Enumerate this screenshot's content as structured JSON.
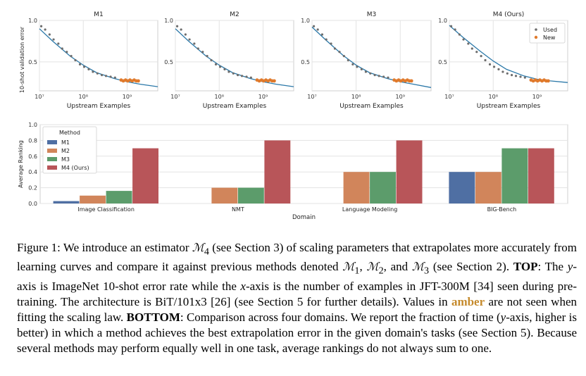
{
  "colors": {
    "curve": "#2b78a8",
    "used": "#6d6d6d",
    "new": "#e07a2c",
    "grid": "#e3e3e3",
    "axis": "#cfcfcf",
    "bars": [
      "#4f6fa3",
      "#d1855b",
      "#5c9c6b",
      "#b85559"
    ]
  },
  "chart_data": [
    {
      "type": "scatter",
      "title": "M1",
      "xlabel": "Upstream Examples",
      "ylabel": "10-shot validation error",
      "xscale": "log",
      "xlim": [
        10000000,
        5000000000
      ],
      "ylim": [
        0.15,
        1.0
      ],
      "yticks": [
        "0.5",
        "1.0"
      ],
      "xticks": [
        "10⁷",
        "10⁸",
        "10⁹"
      ],
      "grid": true,
      "used_points": {
        "x": [
          11000000,
          13500000,
          17000000,
          21000000,
          27000000,
          33000000,
          42000000,
          53000000,
          66000000,
          84000000,
          105000000,
          133000000,
          166000000,
          210000000,
          265000000,
          330000000,
          420000000,
          530000000
        ],
        "y": [
          0.93,
          0.89,
          0.83,
          0.77,
          0.72,
          0.66,
          0.62,
          0.57,
          0.52,
          0.47,
          0.44,
          0.41,
          0.38,
          0.36,
          0.34,
          0.33,
          0.32,
          0.31
        ]
      },
      "new_points": {
        "x": [
          730000000,
          820000000,
          920000000,
          1030000000,
          1160000000,
          1300000000,
          1450000000,
          1620000000,
          1800000000
        ],
        "y": [
          0.28,
          0.27,
          0.28,
          0.27,
          0.28,
          0.27,
          0.28,
          0.27,
          0.27
        ]
      },
      "fit_curve": {
        "x": [
          10000000,
          20000000,
          50000000,
          100000000,
          200000000,
          500000000,
          1000000000,
          2000000000,
          5000000000
        ],
        "y": [
          0.9,
          0.75,
          0.57,
          0.46,
          0.37,
          0.3,
          0.26,
          0.23,
          0.2
        ]
      }
    },
    {
      "type": "scatter",
      "title": "M2",
      "xlabel": "Upstream Examples",
      "xscale": "log",
      "xlim": [
        10000000,
        5000000000
      ],
      "ylim": [
        0.15,
        1.0
      ],
      "yticks": [
        "0.5",
        "1.0"
      ],
      "xticks": [
        "10⁷",
        "10⁸",
        "10⁹"
      ],
      "grid": true,
      "used_points": {
        "x": [
          11000000,
          13500000,
          17000000,
          21000000,
          27000000,
          33000000,
          42000000,
          53000000,
          66000000,
          84000000,
          105000000,
          133000000,
          166000000,
          210000000,
          265000000,
          330000000,
          420000000,
          530000000
        ],
        "y": [
          0.93,
          0.89,
          0.83,
          0.77,
          0.72,
          0.66,
          0.62,
          0.57,
          0.52,
          0.47,
          0.44,
          0.41,
          0.38,
          0.36,
          0.34,
          0.33,
          0.32,
          0.31
        ]
      },
      "new_points": {
        "x": [
          730000000,
          820000000,
          920000000,
          1030000000,
          1160000000,
          1300000000,
          1450000000,
          1620000000,
          1800000000
        ],
        "y": [
          0.28,
          0.27,
          0.28,
          0.27,
          0.28,
          0.27,
          0.28,
          0.27,
          0.27
        ]
      },
      "fit_curve": {
        "x": [
          10000000,
          20000000,
          50000000,
          100000000,
          200000000,
          500000000,
          1000000000,
          2000000000,
          5000000000
        ],
        "y": [
          0.9,
          0.75,
          0.57,
          0.46,
          0.37,
          0.3,
          0.26,
          0.23,
          0.2
        ]
      }
    },
    {
      "type": "scatter",
      "title": "M3",
      "xlabel": "Upstream Examples",
      "xscale": "log",
      "xlim": [
        10000000,
        5000000000
      ],
      "ylim": [
        0.15,
        1.0
      ],
      "yticks": [
        "0.5",
        "1.0"
      ],
      "xticks": [
        "10⁷",
        "10⁸",
        "10⁹"
      ],
      "grid": true,
      "used_points": {
        "x": [
          11000000,
          13500000,
          17000000,
          21000000,
          27000000,
          33000000,
          42000000,
          53000000,
          66000000,
          84000000,
          105000000,
          133000000,
          166000000,
          210000000,
          265000000,
          330000000,
          420000000,
          530000000
        ],
        "y": [
          0.93,
          0.89,
          0.83,
          0.77,
          0.72,
          0.66,
          0.62,
          0.57,
          0.52,
          0.47,
          0.44,
          0.41,
          0.38,
          0.36,
          0.34,
          0.33,
          0.32,
          0.31
        ]
      },
      "new_points": {
        "x": [
          730000000,
          820000000,
          920000000,
          1030000000,
          1160000000,
          1300000000,
          1450000000,
          1620000000,
          1800000000
        ],
        "y": [
          0.28,
          0.27,
          0.28,
          0.27,
          0.28,
          0.27,
          0.28,
          0.27,
          0.27
        ]
      },
      "fit_curve": {
        "x": [
          10000000,
          20000000,
          50000000,
          100000000,
          200000000,
          500000000,
          1000000000,
          2000000000,
          5000000000
        ],
        "y": [
          0.92,
          0.77,
          0.58,
          0.46,
          0.37,
          0.3,
          0.26,
          0.23,
          0.19
        ]
      }
    },
    {
      "type": "scatter",
      "title": "M4 (Ours)",
      "xlabel": "Upstream Examples",
      "xscale": "log",
      "xlim": [
        10000000,
        5000000000
      ],
      "ylim": [
        0.15,
        1.0
      ],
      "yticks": [
        "0.5",
        "1.0"
      ],
      "xticks": [
        "10⁷",
        "10⁸",
        "10⁹"
      ],
      "grid": true,
      "legend": {
        "position": "top-right",
        "entries": [
          "Used",
          "New"
        ]
      },
      "used_points": {
        "x": [
          11000000,
          13500000,
          17000000,
          21000000,
          27000000,
          33000000,
          42000000,
          53000000,
          66000000,
          84000000,
          105000000,
          133000000,
          166000000,
          210000000,
          265000000,
          330000000,
          420000000,
          530000000
        ],
        "y": [
          0.93,
          0.89,
          0.83,
          0.77,
          0.72,
          0.66,
          0.62,
          0.57,
          0.52,
          0.47,
          0.44,
          0.41,
          0.38,
          0.36,
          0.34,
          0.33,
          0.32,
          0.31
        ]
      },
      "new_points": {
        "x": [
          730000000,
          820000000,
          920000000,
          1030000000,
          1160000000,
          1300000000,
          1450000000,
          1620000000,
          1800000000
        ],
        "y": [
          0.28,
          0.27,
          0.28,
          0.27,
          0.28,
          0.27,
          0.28,
          0.27,
          0.27
        ]
      },
      "fit_curve": {
        "x": [
          10000000,
          20000000,
          50000000,
          100000000,
          200000000,
          500000000,
          1000000000,
          2000000000,
          5000000000
        ],
        "y": [
          0.94,
          0.8,
          0.63,
          0.51,
          0.41,
          0.33,
          0.29,
          0.27,
          0.25
        ]
      }
    },
    {
      "type": "bar",
      "categories": [
        "Image Classification",
        "NMT",
        "Language Modeling",
        "BIG-Bench"
      ],
      "xlabel": "Domain",
      "ylabel": "Average Ranking",
      "ylim": [
        0,
        1.0
      ],
      "yticks": [
        "0.0",
        "0.2",
        "0.4",
        "0.6",
        "0.8",
        "1.0"
      ],
      "grid": true,
      "legend": {
        "title": "Method",
        "position": "top-left"
      },
      "series": [
        {
          "name": "M1",
          "values": [
            0.03,
            0.0,
            0.0,
            0.4
          ]
        },
        {
          "name": "M2",
          "values": [
            0.1,
            0.2,
            0.4,
            0.4
          ]
        },
        {
          "name": "M3",
          "values": [
            0.16,
            0.2,
            0.4,
            0.7
          ]
        },
        {
          "name": "M4 (Ours)",
          "values": [
            0.7,
            0.8,
            0.8,
            0.7
          ]
        }
      ]
    }
  ],
  "caption": {
    "label": "Figure 1:",
    "p1": "We introduce an estimator",
    "sym_m": "ℳ",
    "sub_4": "4",
    "p2": "(see Section 3) of scaling parameters that extrapolates more accurately from learning curves and compare it against previous methods denoted",
    "sub_1": "1",
    "sub_2": "2",
    "p3": ", and",
    "sub_3": "3",
    "p4": "(see Section 2).",
    "top": "TOP",
    "p5": ": The",
    "y": "y",
    "p6": "-axis is ImageNet 10-shot error rate while the",
    "x": "x",
    "p7": "-axis is the number of examples in JFT-300M [34] seen during pre-training. The architecture is BiT/101x3 [26] (see Section 5 for further details). Values in",
    "amber": "amber",
    "p8": "are not seen when fitting the scaling law.",
    "bottom": "BOTTOM",
    "p9": ": Comparison across four domains. We report the fraction of time (",
    "p10": "-axis, higher is better) in which a method achieves the best extrapolation error in the given domain's tasks (see Section 5). Because several methods may perform equally well in one task, average rankings do not always sum to one."
  }
}
